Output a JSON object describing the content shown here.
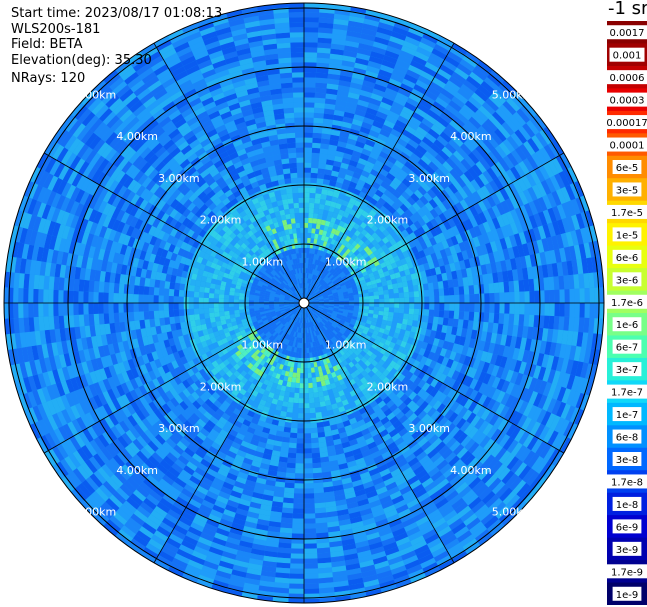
{
  "header": {
    "start_time": "Start time: 2023/08/17 01:08:13",
    "instrument": "WLS200s-181",
    "field": "Field: BETA",
    "elevation": "Elevation(deg): 35.30",
    "nrays": "NRays: 120"
  },
  "colorbar": {
    "unit": "-1 sr",
    "labels": [
      "0.0017",
      "0.001",
      "0.0006",
      "0.0003",
      "0.00017",
      "0.0001",
      "6e-5",
      "3e-5",
      "1.7e-5",
      "1e-5",
      "6e-6",
      "3e-6",
      "1.7e-6",
      "1e-6",
      "6e-7",
      "3e-7",
      "1.7e-7",
      "1e-7",
      "6e-8",
      "3e-8",
      "1.7e-8",
      "1e-8",
      "6e-9",
      "3e-9",
      "1.7e-9",
      "1e-9"
    ],
    "colors": [
      "#8a0000",
      "#a00000",
      "#c40000",
      "#e80000",
      "#ff2a00",
      "#ff5a00",
      "#ff8c00",
      "#ffb000",
      "#ffd800",
      "#fff200",
      "#e8ff10",
      "#c8ff30",
      "#a0ff60",
      "#78ff88",
      "#4cffb0",
      "#28f0d8",
      "#10d8f8",
      "#00b8ff",
      "#0090ff",
      "#0068ff",
      "#0040f0",
      "#0020e0",
      "#0000d0",
      "#0000b0",
      "#000090",
      "#00006a"
    ]
  },
  "chart_data": {
    "type": "heatmap",
    "projection": "polar PPI scan",
    "field": "BETA",
    "nrays": 120,
    "range_unit": "km",
    "max_range_km": 5.0,
    "range_ring_labels": [
      "1.00km",
      "2.00km",
      "3.00km",
      "4.00km",
      "5.00km"
    ],
    "range_rings_km": [
      1,
      2,
      3,
      4,
      5
    ],
    "azimuth_lines_deg": [
      0,
      30,
      60,
      90,
      120,
      150,
      180,
      210,
      240,
      270,
      300,
      330
    ],
    "color_scale": "log",
    "value_range": [
      1e-09,
      0.0017
    ],
    "dominant_level": "1e-7 to 6e-8",
    "enhanced_zones": [
      {
        "range_km": [
          0.9,
          1.4
        ],
        "level": "3e-7 to 1e-6",
        "azimuth_deg": [
          330,
          60
        ]
      },
      {
        "range_km": [
          0.9,
          1.4
        ],
        "level": "3e-7 to 1e-6",
        "azimuth_deg": [
          150,
          240
        ]
      }
    ]
  }
}
